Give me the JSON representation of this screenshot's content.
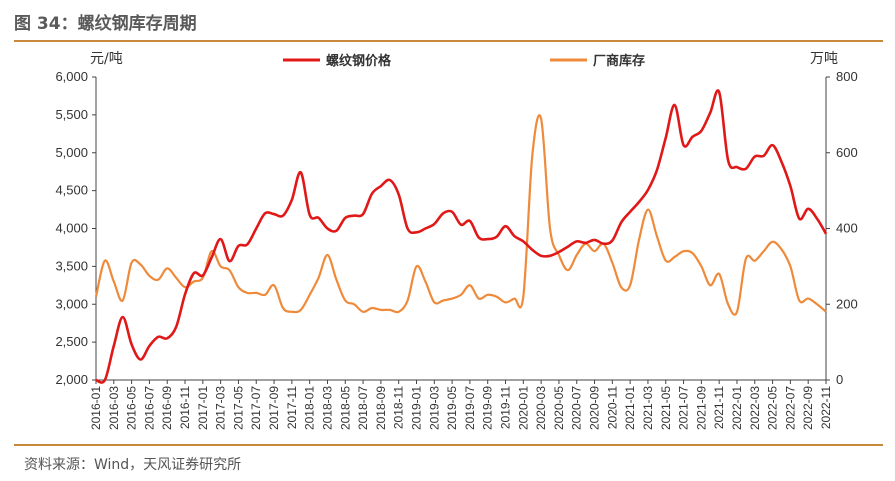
{
  "figure": {
    "title": "图 34：螺纹钢库存周期",
    "source": "资料来源：Wind，天风证券研究所"
  },
  "colors": {
    "price": "#e01818",
    "inventory": "#ef8a3a",
    "rule": "#c8893a"
  },
  "chart_data": {
    "type": "line",
    "y_left_unit": "元/吨",
    "y_right_unit": "万吨",
    "y_left_range": [
      2000,
      6000
    ],
    "y_left_ticks": [
      "2,000",
      "2,500",
      "3,000",
      "3,500",
      "4,000",
      "4,500",
      "5,000",
      "5,500",
      "6,000"
    ],
    "y_right_range": [
      0,
      800
    ],
    "y_right_ticks": [
      "0",
      "200",
      "400",
      "600",
      "800"
    ],
    "x_range": [
      0,
      82
    ],
    "x_tick_labels": [
      "2016-01",
      "2016-03",
      "2016-05",
      "2016-07",
      "2016-09",
      "2016-11",
      "2017-01",
      "2017-03",
      "2017-05",
      "2017-07",
      "2017-09",
      "2017-11",
      "2018-01",
      "2018-03",
      "2018-05",
      "2018-07",
      "2018-09",
      "2018-11",
      "2019-01",
      "2019-03",
      "2019-05",
      "2019-07",
      "2019-09",
      "2019-11",
      "2020-01",
      "2020-03",
      "2020-05",
      "2020-07",
      "2020-09",
      "2020-11",
      "2021-01",
      "2021-03",
      "2021-05",
      "2021-07",
      "2021-09",
      "2021-11",
      "2022-01",
      "2022-03",
      "2022-05",
      "2022-07",
      "2022-09",
      "2022-11"
    ],
    "series": [
      {
        "name": "螺纹钢价格",
        "axis": "left",
        "x": [
          0,
          1,
          2,
          3,
          4,
          5,
          6,
          7,
          8,
          9,
          10,
          11,
          12,
          13,
          14,
          15,
          16,
          17,
          18,
          19,
          20,
          21,
          22,
          23,
          24,
          25,
          26,
          27,
          28,
          29,
          30,
          31,
          32,
          33,
          34,
          35,
          36,
          37,
          38,
          39,
          40,
          41,
          42,
          43,
          44,
          45,
          46,
          47,
          48,
          49,
          50,
          51,
          52,
          53,
          54,
          55,
          56,
          57,
          58,
          59,
          60,
          61,
          62,
          63,
          64,
          65,
          66,
          67,
          68,
          69,
          70,
          71,
          72,
          73,
          74,
          75,
          76,
          77,
          78,
          79,
          80,
          81,
          82
        ],
        "values": [
          2000,
          2000,
          2450,
          2830,
          2470,
          2270,
          2450,
          2570,
          2550,
          2700,
          3130,
          3410,
          3380,
          3620,
          3860,
          3570,
          3770,
          3790,
          4000,
          4200,
          4190,
          4170,
          4380,
          4740,
          4180,
          4140,
          4000,
          3970,
          4140,
          4170,
          4190,
          4460,
          4560,
          4640,
          4450,
          4000,
          3950,
          4000,
          4060,
          4200,
          4220,
          4050,
          4100,
          3880,
          3860,
          3890,
          4030,
          3900,
          3830,
          3720,
          3640,
          3640,
          3690,
          3760,
          3830,
          3810,
          3850,
          3800,
          3840,
          4080,
          4220,
          4350,
          4510,
          4770,
          5200,
          5630,
          5100,
          5210,
          5290,
          5530,
          5800,
          4900,
          4810,
          4790,
          4950,
          4960,
          5100,
          4880,
          4560,
          4130,
          4260,
          4130,
          3930
        ]
      },
      {
        "name": "厂商库存",
        "axis": "right",
        "x": [
          0,
          1,
          2,
          3,
          4,
          5,
          6,
          7,
          8,
          9,
          10,
          11,
          12,
          13,
          14,
          15,
          16,
          17,
          18,
          19,
          20,
          21,
          22,
          23,
          24,
          25,
          26,
          27,
          28,
          29,
          30,
          31,
          32,
          33,
          34,
          35,
          36,
          37,
          38,
          39,
          40,
          41,
          42,
          43,
          44,
          45,
          46,
          47,
          48,
          49,
          50,
          51,
          52,
          53,
          54,
          55,
          56,
          57,
          58,
          59,
          60,
          61,
          62,
          63,
          64,
          65,
          66,
          67,
          68,
          69,
          70,
          71,
          72,
          73,
          74,
          75,
          76,
          77,
          78,
          79,
          80,
          81,
          82
        ],
        "values": [
          220,
          315,
          260,
          210,
          310,
          305,
          275,
          265,
          295,
          270,
          245,
          260,
          270,
          340,
          300,
          290,
          245,
          230,
          230,
          225,
          250,
          190,
          180,
          185,
          225,
          270,
          330,
          265,
          210,
          200,
          180,
          190,
          185,
          185,
          180,
          210,
          300,
          260,
          205,
          210,
          215,
          225,
          250,
          215,
          225,
          220,
          205,
          215,
          220,
          590,
          690,
          400,
          330,
          290,
          330,
          360,
          340,
          360,
          310,
          245,
          250,
          370,
          450,
          380,
          315,
          325,
          340,
          335,
          300,
          250,
          280,
          200,
          180,
          320,
          315,
          340,
          365,
          345,
          300,
          210,
          215,
          200,
          180
        ]
      }
    ]
  }
}
